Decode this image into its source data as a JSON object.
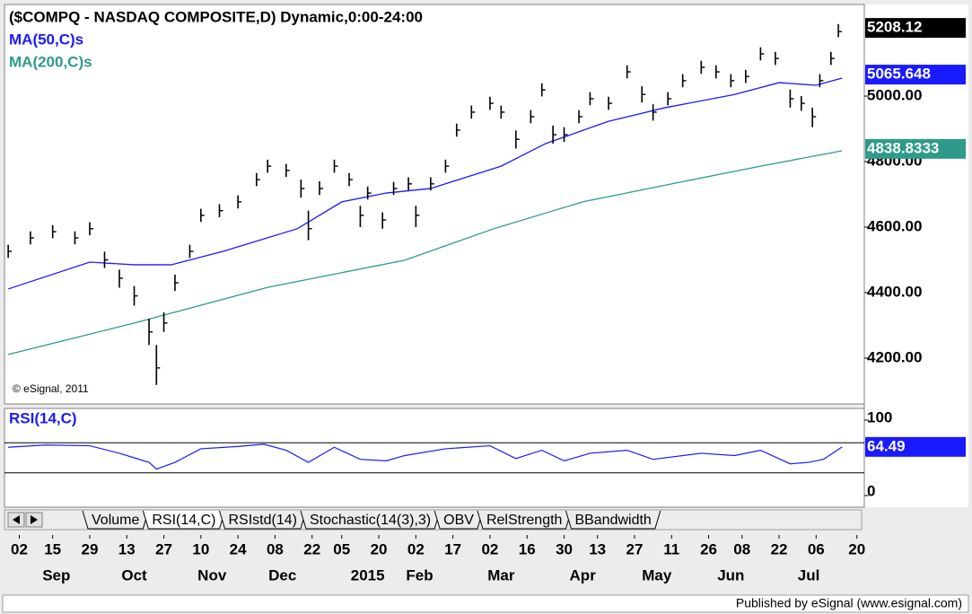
{
  "chart_data": [
    {
      "type": "ohlc",
      "title": "($COMPQ - NASDAQ COMPOSITE,D) Dynamic,0:00-24:00",
      "annotation": "© eSignal, 2011",
      "color": "#000000",
      "x": [
        -3,
        3,
        9,
        15,
        19,
        23,
        27,
        31,
        35,
        37,
        39,
        42,
        46,
        49,
        54,
        59,
        64,
        67,
        72,
        76,
        78,
        81,
        85,
        89,
        92,
        94,
        98,
        101,
        105,
        107,
        111,
        115,
        118,
        122,
        127,
        130,
        134,
        138,
        141,
        144,
        147,
        151,
        154,
        159,
        164,
        168,
        171,
        175,
        179,
        184,
        188,
        192,
        196,
        200,
        204,
        208,
        211,
        214,
        216,
        219,
        221
      ],
      "high": [
        4546,
        4587,
        4606,
        4587,
        4615,
        4525,
        4470,
        4420,
        4320,
        4240,
        4340,
        4455,
        4546,
        4656,
        4670,
        4697,
        4765,
        4806,
        4793,
        4745,
        4650,
        4740,
        4806,
        4765,
        4665,
        4724,
        4645,
        4738,
        4752,
        4665,
        4752,
        4806,
        4916,
        4971,
        4998,
        4971,
        4895,
        4957,
        5039,
        4910,
        4905,
        4957,
        5012,
        4998,
        5094,
        5030,
        4975,
        5012,
        5067,
        5108,
        5094,
        5067,
        5080,
        5149,
        5135,
        5020,
        5000,
        4965,
        5067,
        5135,
        5220
      ],
      "low": [
        4506,
        4547,
        4566,
        4547,
        4575,
        4475,
        4415,
        4360,
        4240,
        4118,
        4280,
        4405,
        4506,
        4616,
        4630,
        4657,
        4725,
        4766,
        4753,
        4690,
        4560,
        4698,
        4766,
        4725,
        4600,
        4684,
        4595,
        4698,
        4712,
        4600,
        4712,
        4766,
        4876,
        4931,
        4958,
        4931,
        4840,
        4917,
        4999,
        4855,
        4860,
        4917,
        4972,
        4958,
        5054,
        4980,
        4925,
        4972,
        5027,
        5068,
        5054,
        5027,
        5040,
        5109,
        5095,
        4965,
        4955,
        4905,
        5027,
        5095,
        5180
      ],
      "close": [
        4526,
        4567,
        4586,
        4567,
        4595,
        4500,
        4444,
        4390,
        4280,
        4170,
        4307,
        4430,
        4526,
        4636,
        4650,
        4677,
        4745,
        4786,
        4773,
        4718,
        4595,
        4718,
        4786,
        4745,
        4636,
        4704,
        4622,
        4718,
        4732,
        4636,
        4732,
        4786,
        4896,
        4951,
        4978,
        4951,
        4868,
        4937,
        5019,
        4882,
        4882,
        4937,
        4992,
        4978,
        5074,
        5005,
        4951,
        4992,
        5047,
        5088,
        5074,
        5047,
        5060,
        5129,
        5115,
        4992,
        4978,
        4937,
        5047,
        5115,
        5197
      ],
      "last_value": 5208.12,
      "overlays": [
        {
          "name": "MA(50,C)s",
          "color": "#1a1aff",
          "x": [
            -3,
            19,
            31,
            41,
            55,
            75,
            87,
            99,
            111,
            130,
            142,
            159,
            174,
            193,
            205,
            215,
            222
          ],
          "values": [
            4411,
            4493,
            4485,
            4485,
            4526,
            4595,
            4677,
            4704,
            4718,
            4786,
            4855,
            4923,
            4964,
            5005,
            5041,
            5033,
            5055
          ],
          "last_value": 5065.648
        },
        {
          "name": "MA(200,C)s",
          "color": "#2e9a8a",
          "x": [
            -3,
            31,
            67,
            104,
            128,
            152,
            176,
            200,
            222
          ],
          "values": [
            4211,
            4307,
            4416,
            4499,
            4595,
            4677,
            4732,
            4786,
            4833
          ],
          "last_value": 4838.8333
        }
      ],
      "xlim": [
        -4,
        228
      ],
      "ylim": [
        4060,
        5266
      ],
      "yticks": [
        {
          "value": 4200,
          "label": "4200.00"
        },
        {
          "value": 4400,
          "label": "4400.00"
        },
        {
          "value": 4600,
          "label": "4600.00"
        },
        {
          "value": 4800,
          "label": "4800.00"
        },
        {
          "value": 5000,
          "label": "5000.00"
        }
      ],
      "xticks": [
        {
          "value": 0,
          "label": "02"
        },
        {
          "value": 9,
          "label": "15"
        },
        {
          "value": 19,
          "label": "29"
        },
        {
          "value": 29,
          "label": "13"
        },
        {
          "value": 39,
          "label": "27"
        },
        {
          "value": 49,
          "label": "10"
        },
        {
          "value": 59,
          "label": "24"
        },
        {
          "value": 69,
          "label": "08"
        },
        {
          "value": 79,
          "label": "22"
        },
        {
          "value": 87,
          "label": "05"
        },
        {
          "value": 97,
          "label": "20"
        },
        {
          "value": 107,
          "label": "02"
        },
        {
          "value": 117,
          "label": "17"
        },
        {
          "value": 127,
          "label": "02"
        },
        {
          "value": 137,
          "label": "16"
        },
        {
          "value": 147,
          "label": "30"
        },
        {
          "value": 156,
          "label": "13"
        },
        {
          "value": 166,
          "label": "27"
        },
        {
          "value": 176,
          "label": "11"
        },
        {
          "value": 186,
          "label": "26"
        },
        {
          "value": 195,
          "label": "08"
        },
        {
          "value": 205,
          "label": "22"
        },
        {
          "value": 215,
          "label": "06"
        },
        {
          "value": 226,
          "label": "20"
        }
      ],
      "xticks2": [
        {
          "value": 10,
          "label": "Sep"
        },
        {
          "value": 31,
          "label": "Oct"
        },
        {
          "value": 52,
          "label": "Nov"
        },
        {
          "value": 71,
          "label": "Dec"
        },
        {
          "value": 94,
          "label": "2015"
        },
        {
          "value": 108,
          "label": "Feb"
        },
        {
          "value": 130,
          "label": "Mar"
        },
        {
          "value": 152,
          "label": "Apr"
        },
        {
          "value": 172,
          "label": "May"
        },
        {
          "value": 192,
          "label": "Jun"
        },
        {
          "value": 213,
          "label": "Jul"
        }
      ]
    },
    {
      "type": "line",
      "title": "RSI(14,C)",
      "color": "#1a1aff",
      "x": [
        -3,
        7,
        19,
        27,
        31,
        35,
        37,
        42,
        49,
        59,
        66,
        72,
        78,
        85,
        92,
        99,
        104,
        115,
        127,
        134,
        141,
        147,
        154,
        164,
        171,
        184,
        193,
        200,
        208,
        213,
        217,
        222
      ],
      "values": [
        64,
        67,
        66,
        56,
        50,
        44,
        35,
        44,
        62,
        65,
        68,
        60,
        44,
        64,
        48,
        46,
        53,
        62,
        66,
        49,
        60,
        46,
        56,
        60,
        48,
        56,
        53,
        60,
        42,
        44,
        48,
        64.49
      ],
      "last_value": 64.49,
      "ylim": [
        0,
        100
      ],
      "yticks": [
        0,
        100
      ],
      "levels": [
        30,
        70
      ]
    }
  ],
  "tabs": [
    "Volume",
    "RSI(14,C)",
    "RSIstd(14)",
    "Stochastic(14(3),3)",
    "OBV",
    "RelStrength",
    "BBandwidth"
  ],
  "active_tab": 1,
  "footer": "Published by eSignal (www.esignal.com)"
}
